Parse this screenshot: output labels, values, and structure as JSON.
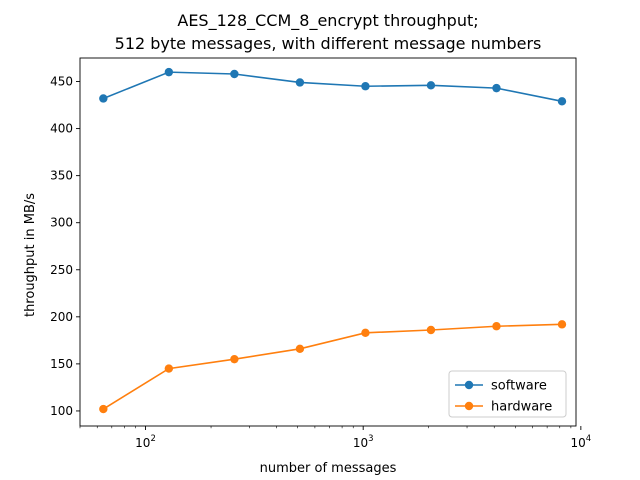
{
  "chart_data": {
    "type": "line",
    "title_lines": [
      "AES_128_CCM_8_encrypt throughput;",
      "512 byte messages, with different message numbers"
    ],
    "xlabel": "number of messages",
    "ylabel": "throughput in MB/s",
    "x_scale": "log",
    "xlim": [
      50,
      9500
    ],
    "ylim": [
      84,
      475
    ],
    "x_ticks": [
      {
        "value": 100,
        "base": "10",
        "exp": "2"
      },
      {
        "value": 1000,
        "base": "10",
        "exp": "3"
      },
      {
        "value": 10000,
        "base": "10",
        "exp": "4"
      }
    ],
    "y_ticks": [
      100,
      150,
      200,
      250,
      300,
      350,
      400,
      450
    ],
    "x": [
      64,
      128,
      256,
      512,
      1024,
      2048,
      4096,
      8192
    ],
    "series": [
      {
        "name": "software",
        "color": "#1f77b4",
        "values": [
          432,
          460,
          458,
          449,
          445,
          446,
          443,
          429
        ]
      },
      {
        "name": "hardware",
        "color": "#ff7f0e",
        "values": [
          102,
          145,
          155,
          166,
          183,
          186,
          190,
          192
        ]
      }
    ],
    "legend_position": "lower-right",
    "grid": false
  }
}
